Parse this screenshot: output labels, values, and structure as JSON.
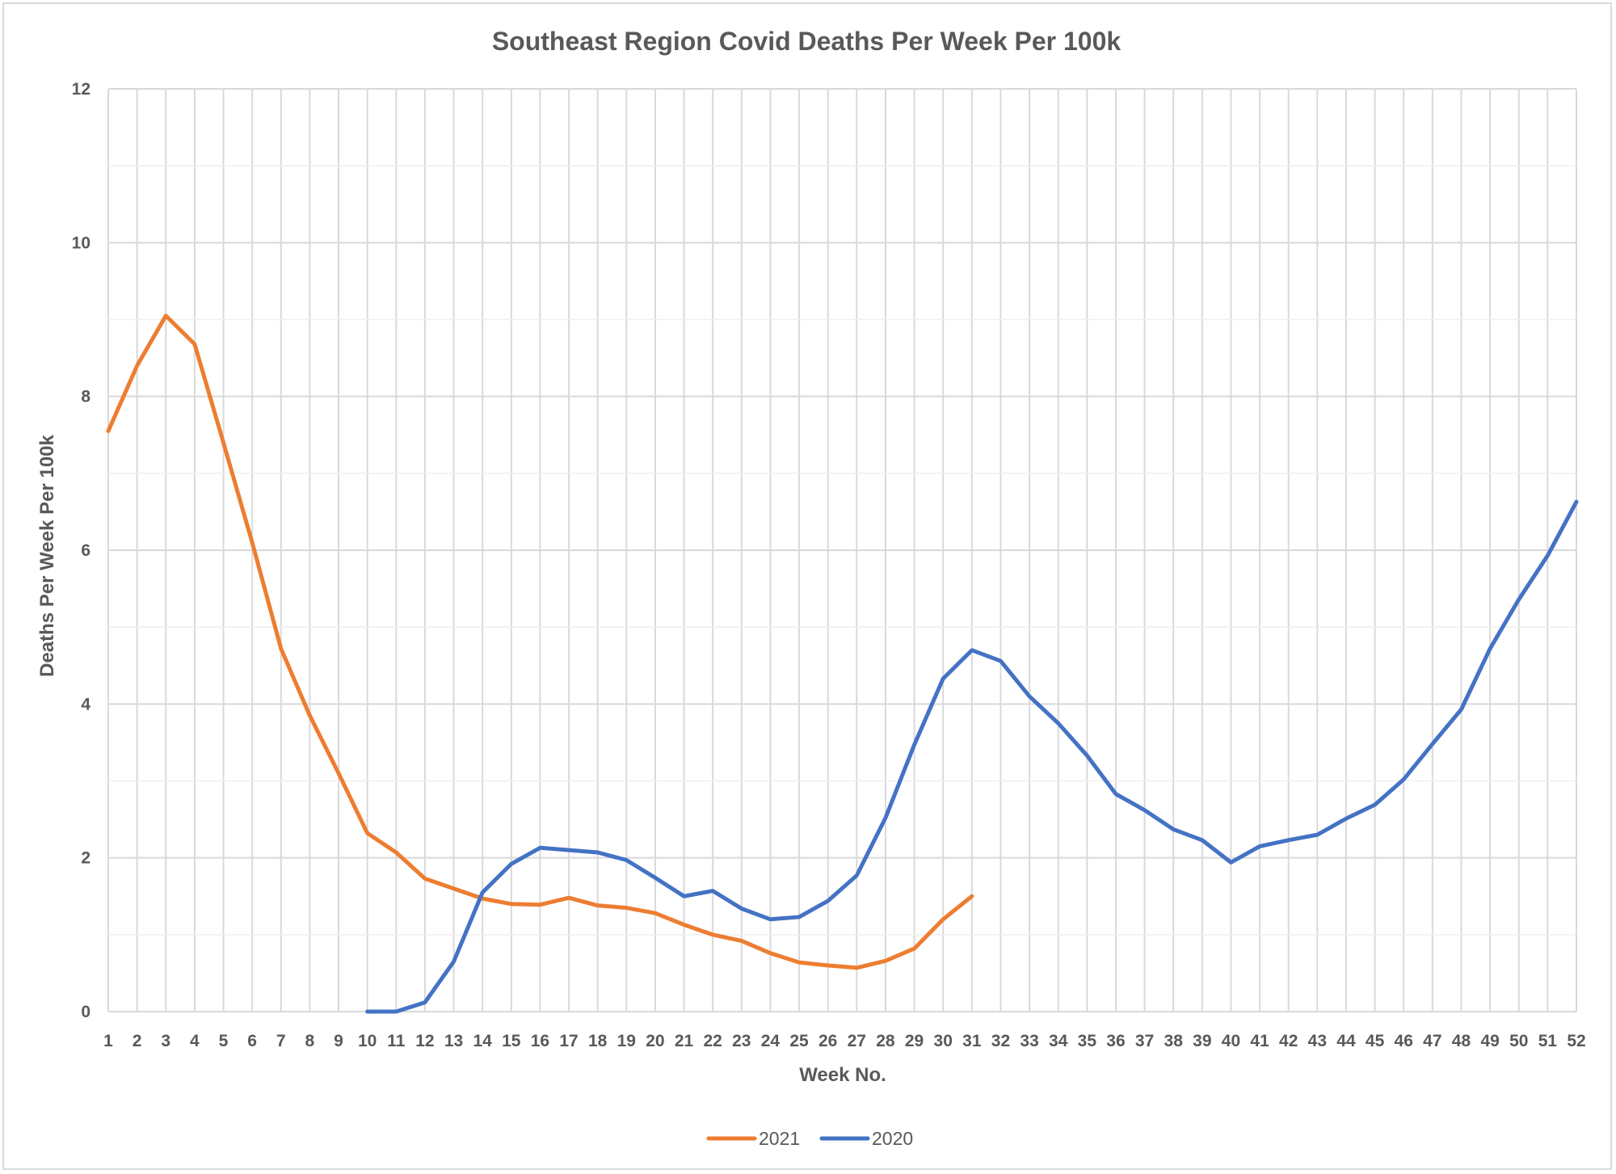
{
  "chart_data": {
    "type": "line",
    "title": "Southeast Region Covid Deaths Per Week Per 100k",
    "xlabel": "Week No.",
    "ylabel": "Deaths Per Week Per 100k",
    "x": [
      1,
      2,
      3,
      4,
      5,
      6,
      7,
      8,
      9,
      10,
      11,
      12,
      13,
      14,
      15,
      16,
      17,
      18,
      19,
      20,
      21,
      22,
      23,
      24,
      25,
      26,
      27,
      28,
      29,
      30,
      31,
      32,
      33,
      34,
      35,
      36,
      37,
      38,
      39,
      40,
      41,
      42,
      43,
      44,
      45,
      46,
      47,
      48,
      49,
      50,
      51,
      52
    ],
    "xlim": [
      1,
      52
    ],
    "ylim": [
      0,
      12
    ],
    "yticks": [
      0,
      2,
      4,
      6,
      8,
      10,
      12
    ],
    "grid": true,
    "legend_position": "bottom",
    "series": [
      {
        "name": "2021",
        "color": "#ED7D31",
        "values": [
          7.55,
          8.4,
          9.05,
          8.68,
          7.4,
          6.1,
          4.72,
          3.85,
          3.1,
          2.32,
          2.07,
          1.73,
          1.6,
          1.47,
          1.4,
          1.39,
          1.48,
          1.38,
          1.35,
          1.28,
          1.13,
          1.0,
          0.92,
          0.76,
          0.64,
          0.6,
          0.57,
          0.66,
          0.82,
          1.2,
          1.5,
          null,
          null,
          null,
          null,
          null,
          null,
          null,
          null,
          null,
          null,
          null,
          null,
          null,
          null,
          null,
          null,
          null,
          null,
          null,
          null,
          null
        ]
      },
      {
        "name": "2020",
        "color": "#4472C4",
        "values": [
          null,
          null,
          null,
          null,
          null,
          null,
          null,
          null,
          null,
          0.0,
          0.0,
          0.12,
          0.65,
          1.55,
          1.92,
          2.13,
          2.1,
          2.07,
          1.97,
          1.74,
          1.5,
          1.57,
          1.34,
          1.2,
          1.23,
          1.44,
          1.77,
          2.52,
          3.47,
          4.33,
          4.7,
          4.56,
          4.1,
          3.75,
          3.33,
          2.83,
          2.62,
          2.37,
          2.23,
          1.94,
          2.15,
          2.23,
          2.3,
          2.51,
          2.69,
          3.02,
          3.48,
          3.93,
          4.72,
          5.36,
          5.93,
          6.63
        ]
      }
    ]
  }
}
